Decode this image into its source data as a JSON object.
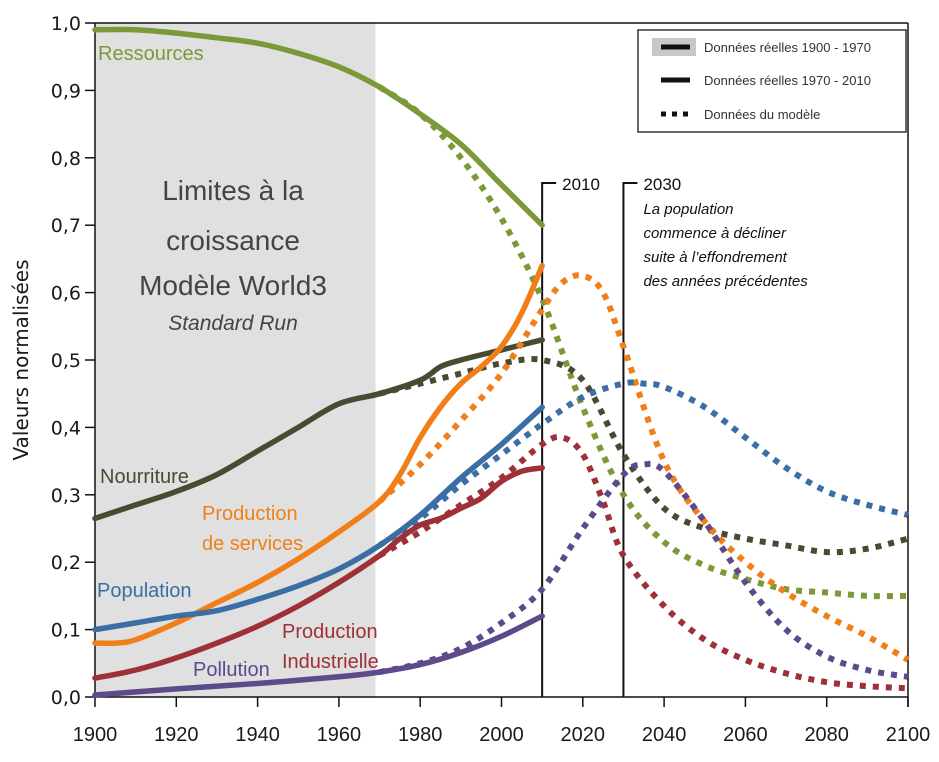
{
  "chart_data": {
    "type": "line",
    "title": [
      "Limites à la",
      "croissance",
      "Modèle World3",
      "Standard Run"
    ],
    "xlabel": "",
    "ylabel": "Valeurs normalisées",
    "xlim": [
      1900,
      2100
    ],
    "ylim": [
      0,
      1.0
    ],
    "x_ticks": [
      1900,
      1920,
      1940,
      1960,
      1980,
      2000,
      2020,
      2040,
      2060,
      2080,
      2100
    ],
    "x_tick_labels": [
      "1900",
      "1920",
      "1940",
      "1960",
      "1980",
      "2000",
      "2020",
      "2040",
      "2060",
      "2080",
      "2100"
    ],
    "y_ticks": [
      0,
      0.1,
      0.2,
      0.3,
      0.4,
      0.5,
      0.6,
      0.7,
      0.8,
      0.9,
      1.0
    ],
    "y_tick_labels": [
      "0,0",
      "0,1",
      "0,2",
      "0,3",
      "0,4",
      "0,5",
      "0,6",
      "0,7",
      "0,8",
      "0,9",
      "1,0"
    ],
    "grid": false,
    "shaded_region": {
      "x_start": 1900,
      "x_end": 1969,
      "color": "#e0e0e0"
    },
    "legend": {
      "position": "top-right",
      "entries": [
        {
          "label": "Données réelles 1900 - 1970",
          "style": "solid-shaded"
        },
        {
          "label": "Données réelles 1970 - 2010",
          "style": "solid"
        },
        {
          "label": "Données du modèle",
          "style": "dotted"
        }
      ]
    },
    "markers": [
      {
        "x": 2010,
        "label": "2010",
        "text": []
      },
      {
        "x": 2030,
        "label": "2030",
        "text": [
          "La population",
          "commence à décliner",
          "suite à l’effondrement",
          "des années précédentes"
        ]
      }
    ],
    "series": [
      {
        "name": "Ressources",
        "color": "#7a9a3a",
        "label_lines": [
          "Ressources"
        ],
        "real": {
          "x": [
            1900,
            1910,
            1920,
            1930,
            1940,
            1950,
            1960,
            1970,
            1980,
            1990,
            2000,
            2010
          ],
          "y": [
            0.99,
            0.99,
            0.985,
            0.978,
            0.97,
            0.955,
            0.935,
            0.905,
            0.865,
            0.82,
            0.76,
            0.7
          ]
        },
        "model": {
          "x": [
            1970,
            1980,
            1990,
            2000,
            2010,
            2020,
            2030,
            2040,
            2050,
            2060,
            2070,
            2080,
            2090,
            2100
          ],
          "y": [
            0.905,
            0.865,
            0.8,
            0.71,
            0.59,
            0.43,
            0.3,
            0.23,
            0.195,
            0.175,
            0.16,
            0.155,
            0.15,
            0.15
          ]
        }
      },
      {
        "name": "Nourriture",
        "color": "#4a4a32",
        "label_lines": [
          "Nourriture"
        ],
        "real": {
          "x": [
            1900,
            1910,
            1920,
            1930,
            1940,
            1950,
            1960,
            1970,
            1980,
            1985,
            1990,
            2000,
            2010
          ],
          "y": [
            0.265,
            0.285,
            0.305,
            0.33,
            0.365,
            0.4,
            0.435,
            0.45,
            0.47,
            0.49,
            0.5,
            0.515,
            0.53
          ]
        },
        "model": {
          "x": [
            1970,
            1980,
            1990,
            2000,
            2010,
            2020,
            2030,
            2040,
            2050,
            2060,
            2070,
            2080,
            2090,
            2100
          ],
          "y": [
            0.45,
            0.465,
            0.48,
            0.495,
            0.5,
            0.47,
            0.36,
            0.28,
            0.25,
            0.235,
            0.225,
            0.215,
            0.22,
            0.235
          ]
        }
      },
      {
        "name": "Production de services",
        "color": "#f07f1a",
        "label_lines": [
          "Production",
          "de services"
        ],
        "real": {
          "x": [
            1900,
            1905,
            1910,
            1920,
            1930,
            1940,
            1950,
            1960,
            1970,
            1975,
            1980,
            1985,
            1990,
            1995,
            2000,
            2005,
            2010
          ],
          "y": [
            0.08,
            0.08,
            0.085,
            0.11,
            0.14,
            0.17,
            0.205,
            0.245,
            0.29,
            0.33,
            0.385,
            0.43,
            0.465,
            0.49,
            0.52,
            0.57,
            0.64
          ]
        },
        "model": {
          "x": [
            1970,
            1980,
            1990,
            2000,
            2010,
            2015,
            2020,
            2025,
            2030,
            2040,
            2050,
            2060,
            2070,
            2080,
            2090,
            2100
          ],
          "y": [
            0.29,
            0.345,
            0.41,
            0.48,
            0.575,
            0.615,
            0.625,
            0.6,
            0.52,
            0.35,
            0.26,
            0.2,
            0.155,
            0.12,
            0.09,
            0.055
          ]
        }
      },
      {
        "name": "Population",
        "color": "#3a6ea5",
        "label_lines": [
          "Population"
        ],
        "real": {
          "x": [
            1900,
            1910,
            1920,
            1930,
            1940,
            1950,
            1960,
            1970,
            1980,
            1990,
            2000,
            2010
          ],
          "y": [
            0.1,
            0.11,
            0.12,
            0.128,
            0.145,
            0.165,
            0.19,
            0.225,
            0.27,
            0.325,
            0.375,
            0.43
          ]
        },
        "model": {
          "x": [
            1970,
            1980,
            1990,
            2000,
            2010,
            2020,
            2030,
            2035,
            2040,
            2050,
            2060,
            2070,
            2080,
            2090,
            2100
          ],
          "y": [
            0.225,
            0.265,
            0.315,
            0.36,
            0.405,
            0.445,
            0.465,
            0.465,
            0.46,
            0.43,
            0.385,
            0.34,
            0.305,
            0.285,
            0.27
          ]
        }
      },
      {
        "name": "Production Industrielle",
        "color": "#9e3038",
        "label_lines": [
          "Production",
          "Industrielle"
        ],
        "real": {
          "x": [
            1900,
            1910,
            1920,
            1930,
            1940,
            1950,
            1960,
            1970,
            1975,
            1980,
            1985,
            1990,
            1995,
            2000,
            2005,
            2010
          ],
          "y": [
            0.028,
            0.04,
            0.058,
            0.08,
            0.105,
            0.135,
            0.17,
            0.21,
            0.235,
            0.255,
            0.265,
            0.28,
            0.295,
            0.32,
            0.335,
            0.34
          ]
        },
        "model": {
          "x": [
            1970,
            1980,
            1990,
            2000,
            2010,
            2015,
            2020,
            2025,
            2030,
            2040,
            2050,
            2060,
            2070,
            2080,
            2090,
            2100
          ],
          "y": [
            0.21,
            0.245,
            0.285,
            0.325,
            0.375,
            0.385,
            0.36,
            0.29,
            0.21,
            0.135,
            0.085,
            0.055,
            0.035,
            0.022,
            0.016,
            0.013
          ]
        }
      },
      {
        "name": "Pollution",
        "color": "#5c4a8a",
        "label_lines": [
          "Pollution"
        ],
        "real": {
          "x": [
            1900,
            1920,
            1940,
            1960,
            1970,
            1980,
            1990,
            2000,
            2010
          ],
          "y": [
            0.003,
            0.012,
            0.02,
            0.03,
            0.037,
            0.048,
            0.066,
            0.09,
            0.12
          ]
        },
        "model": {
          "x": [
            1970,
            1980,
            1990,
            2000,
            2010,
            2020,
            2030,
            2035,
            2040,
            2050,
            2060,
            2070,
            2080,
            2090,
            2100
          ],
          "y": [
            0.037,
            0.05,
            0.072,
            0.11,
            0.16,
            0.25,
            0.33,
            0.345,
            0.335,
            0.26,
            0.17,
            0.1,
            0.06,
            0.04,
            0.03
          ]
        }
      }
    ]
  }
}
